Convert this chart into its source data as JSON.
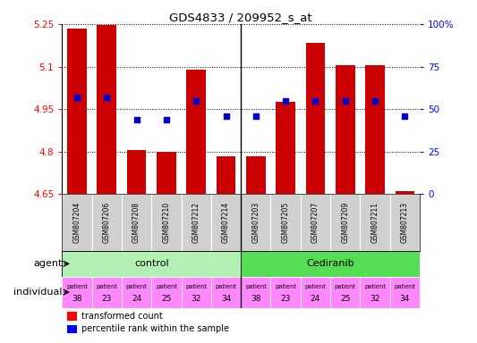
{
  "title": "GDS4833 / 209952_s_at",
  "samples": [
    "GSM807204",
    "GSM807206",
    "GSM807208",
    "GSM807210",
    "GSM807212",
    "GSM807214",
    "GSM807203",
    "GSM807205",
    "GSM807207",
    "GSM807209",
    "GSM807211",
    "GSM807213"
  ],
  "bar_values": [
    5.235,
    5.245,
    4.805,
    4.8,
    5.09,
    4.785,
    4.785,
    4.975,
    5.185,
    5.105,
    5.105,
    4.662
  ],
  "percentile_values": [
    57,
    57,
    44,
    44,
    55,
    46,
    46,
    55,
    55,
    55,
    55,
    46
  ],
  "ymin": 4.65,
  "ymax": 5.25,
  "yticks": [
    4.65,
    4.8,
    4.95,
    5.1,
    5.25
  ],
  "ytick_labels": [
    "4.65",
    "4.8",
    "4.95",
    "5.1",
    "5.25"
  ],
  "right_yticks": [
    0,
    25,
    50,
    75,
    100
  ],
  "right_ytick_labels": [
    "0",
    "25",
    "50",
    "75",
    "100%"
  ],
  "bar_color": "#cc0000",
  "dot_color": "#0000cc",
  "agent_control": "control",
  "agent_cediranib": "Cediranib",
  "control_color": "#b3f0b3",
  "cediranib_color": "#55dd55",
  "individual_color": "#ff88ff",
  "patients_control": [
    "38",
    "23",
    "24",
    "25",
    "32",
    "34"
  ],
  "patients_cediranib": [
    "38",
    "23",
    "24",
    "25",
    "32",
    "34"
  ],
  "legend_bar_label": "transformed count",
  "legend_dot_label": "percentile rank within the sample",
  "left_label": "agent",
  "individual_label": "individual",
  "sample_bg": "#d0d0d0"
}
